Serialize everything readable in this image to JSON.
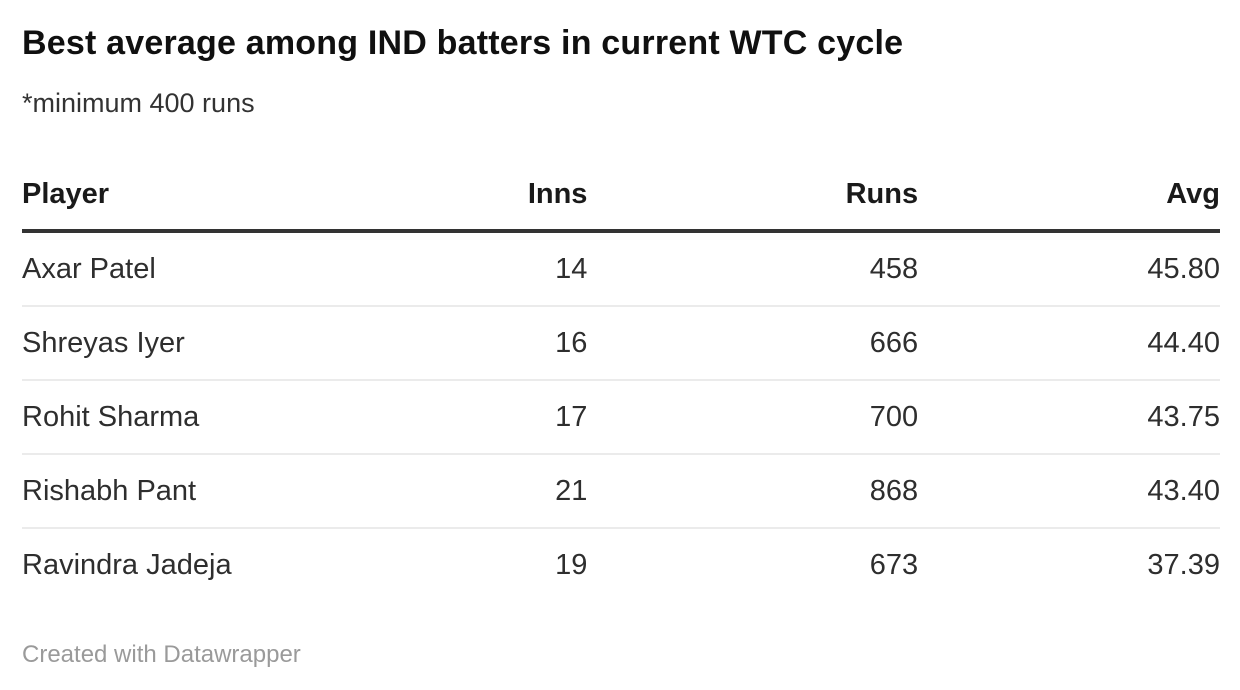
{
  "header": {
    "title": "Best average among IND batters in current WTC cycle",
    "subtitle": "*minimum 400 runs"
  },
  "table": {
    "columns": [
      "Player",
      "Inns",
      "Runs",
      "Avg"
    ],
    "fields": [
      "player",
      "inns",
      "runs",
      "avg"
    ],
    "rows": [
      {
        "player": "Axar Patel",
        "inns": "14",
        "runs": "458",
        "avg": "45.80"
      },
      {
        "player": "Shreyas Iyer",
        "inns": "16",
        "runs": "666",
        "avg": "44.40"
      },
      {
        "player": "Rohit Sharma",
        "inns": "17",
        "runs": "700",
        "avg": "43.75"
      },
      {
        "player": "Rishabh Pant",
        "inns": "21",
        "runs": "868",
        "avg": "43.40"
      },
      {
        "player": "Ravindra Jadeja",
        "inns": "19",
        "runs": "673",
        "avg": "37.39"
      }
    ]
  },
  "footer": {
    "attribution": "Created with Datawrapper"
  },
  "colors": {
    "background": "#ffffff",
    "title_text": "#101010",
    "body_text": "#2e2e2e",
    "header_border": "#333333",
    "row_border": "#ebebeb",
    "footer_text": "#9a9a9a"
  },
  "chart_data": {
    "type": "table",
    "title": "Best average among IND batters in current WTC cycle",
    "subtitle": "*minimum 400 runs",
    "columns": [
      "Player",
      "Inns",
      "Runs",
      "Avg"
    ],
    "rows": [
      [
        "Axar Patel",
        14,
        458,
        45.8
      ],
      [
        "Shreyas Iyer",
        16,
        666,
        44.4
      ],
      [
        "Rohit Sharma",
        17,
        700,
        43.75
      ],
      [
        "Rishabh Pant",
        21,
        868,
        43.4
      ],
      [
        "Ravindra Jadeja",
        19,
        673,
        37.39
      ]
    ],
    "layout_hints": {
      "numeric_columns_right_aligned": true,
      "header_rule": "thick-dark",
      "row_rules": "thin-light",
      "attribution": "Created with Datawrapper"
    }
  }
}
